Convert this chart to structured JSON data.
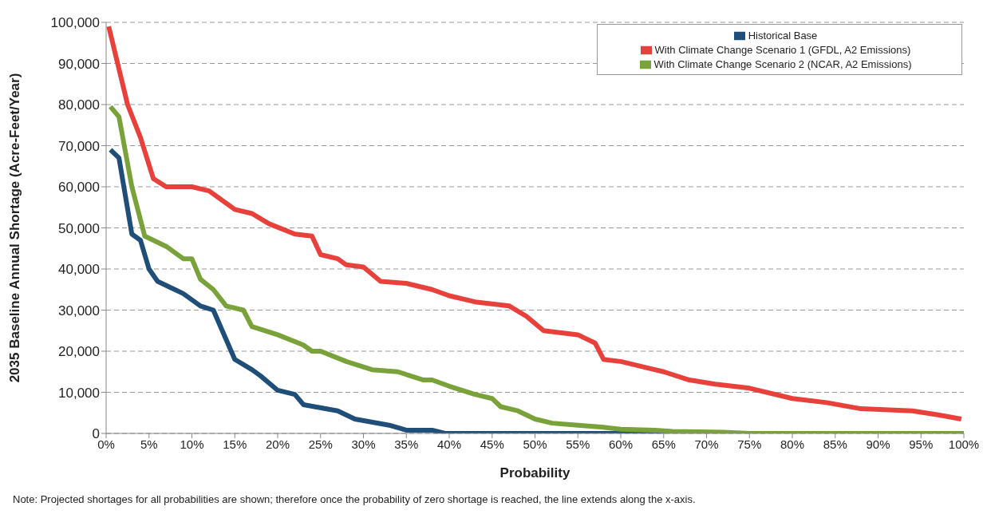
{
  "chart_data": {
    "type": "line",
    "xlabel": "Probability",
    "ylabel": "2035 Baseline Annual Shortage (Acre-Feet/Year)",
    "xlim": [
      0,
      100
    ],
    "ylim": [
      0,
      100000
    ],
    "xticks": [
      {
        "value": 0,
        "label": "0%"
      },
      {
        "value": 5,
        "label": "5%"
      },
      {
        "value": 10,
        "label": "10%"
      },
      {
        "value": 15,
        "label": "15%"
      },
      {
        "value": 20,
        "label": "20%"
      },
      {
        "value": 25,
        "label": "25%"
      },
      {
        "value": 30,
        "label": "30%"
      },
      {
        "value": 35,
        "label": "35%"
      },
      {
        "value": 40,
        "label": "40%"
      },
      {
        "value": 45,
        "label": "45%"
      },
      {
        "value": 50,
        "label": "50%"
      },
      {
        "value": 55,
        "label": "55%"
      },
      {
        "value": 60,
        "label": "60%"
      },
      {
        "value": 65,
        "label": "65%"
      },
      {
        "value": 70,
        "label": "70%"
      },
      {
        "value": 75,
        "label": "75%"
      },
      {
        "value": 80,
        "label": "80%"
      },
      {
        "value": 85,
        "label": "85%"
      },
      {
        "value": 90,
        "label": "90%"
      },
      {
        "value": 95,
        "label": "95%"
      },
      {
        "value": 100,
        "label": "100%"
      }
    ],
    "yticks": [
      {
        "value": 0,
        "label": "0"
      },
      {
        "value": 10000,
        "label": "10,000"
      },
      {
        "value": 20000,
        "label": "20,000"
      },
      {
        "value": 30000,
        "label": "30,000"
      },
      {
        "value": 40000,
        "label": "40,000"
      },
      {
        "value": 50000,
        "label": "50,000"
      },
      {
        "value": 60000,
        "label": "60,000"
      },
      {
        "value": 70000,
        "label": "70,000"
      },
      {
        "value": 80000,
        "label": "80,000"
      },
      {
        "value": 90000,
        "label": "90,000"
      },
      {
        "value": 100000,
        "label": "100,000"
      }
    ],
    "grid": "y",
    "legend": "top right",
    "marker": "none",
    "line_style": "solid",
    "series": [
      {
        "name": "Historical Base",
        "color": "#1f4e79",
        "x": [
          0.5,
          1.5,
          3,
          4,
          5,
          6,
          8,
          9,
          11,
          12.5,
          15,
          17,
          18,
          20,
          22,
          23,
          27,
          29,
          33,
          35,
          38,
          39.5,
          100
        ],
        "values": [
          69000,
          67000,
          48500,
          47000,
          40000,
          37000,
          35000,
          34000,
          31000,
          30000,
          18000,
          15500,
          14000,
          10500,
          9500,
          7000,
          5500,
          3500,
          2000,
          800,
          800,
          0,
          0
        ]
      },
      {
        "name": "With Climate Change Scenario 1 (GFDL, A2 Emissions)",
        "color": "#e8413c",
        "x": [
          0.3,
          2.5,
          4,
          5.5,
          7,
          10,
          12,
          15,
          17,
          19,
          22,
          24,
          25,
          27,
          28,
          30,
          32,
          35,
          38,
          40,
          43,
          47,
          49,
          51,
          55,
          57,
          58,
          60,
          63,
          65,
          68,
          71,
          75,
          80,
          84,
          88,
          94,
          97,
          99.7
        ],
        "values": [
          99000,
          80000,
          72000,
          62000,
          60000,
          60000,
          59000,
          54500,
          53500,
          51000,
          48500,
          48000,
          43500,
          42500,
          41000,
          40500,
          37000,
          36500,
          35000,
          33500,
          32000,
          31000,
          28500,
          25000,
          24000,
          22000,
          18000,
          17500,
          16000,
          15000,
          13000,
          12000,
          11000,
          8500,
          7500,
          6000,
          5500,
          4500,
          3500
        ]
      },
      {
        "name": "With Climate Change Scenario 2 (NCAR, A2 Emissions)",
        "color": "#7aa23a",
        "x": [
          0.5,
          1.5,
          3,
          4.5,
          7,
          9,
          10,
          11,
          12.5,
          14,
          16,
          17,
          20,
          23,
          24,
          25,
          28,
          31,
          34,
          37,
          38,
          40,
          43,
          45,
          46,
          48,
          50,
          52,
          55,
          58,
          60,
          64,
          66,
          72,
          75,
          100
        ],
        "values": [
          79500,
          77000,
          60000,
          48000,
          45500,
          42500,
          42500,
          37500,
          35000,
          31000,
          30000,
          26000,
          24000,
          21500,
          20000,
          20000,
          17500,
          15500,
          15000,
          13000,
          13000,
          11500,
          9500,
          8500,
          6500,
          5500,
          3500,
          2500,
          2000,
          1500,
          1000,
          800,
          500,
          300,
          0,
          0
        ]
      }
    ],
    "annotations": [
      "Note: Projected shortages for all probabilities are shown; therefore once the probability of zero shortage is reached, the line extends along the x-axis."
    ]
  }
}
